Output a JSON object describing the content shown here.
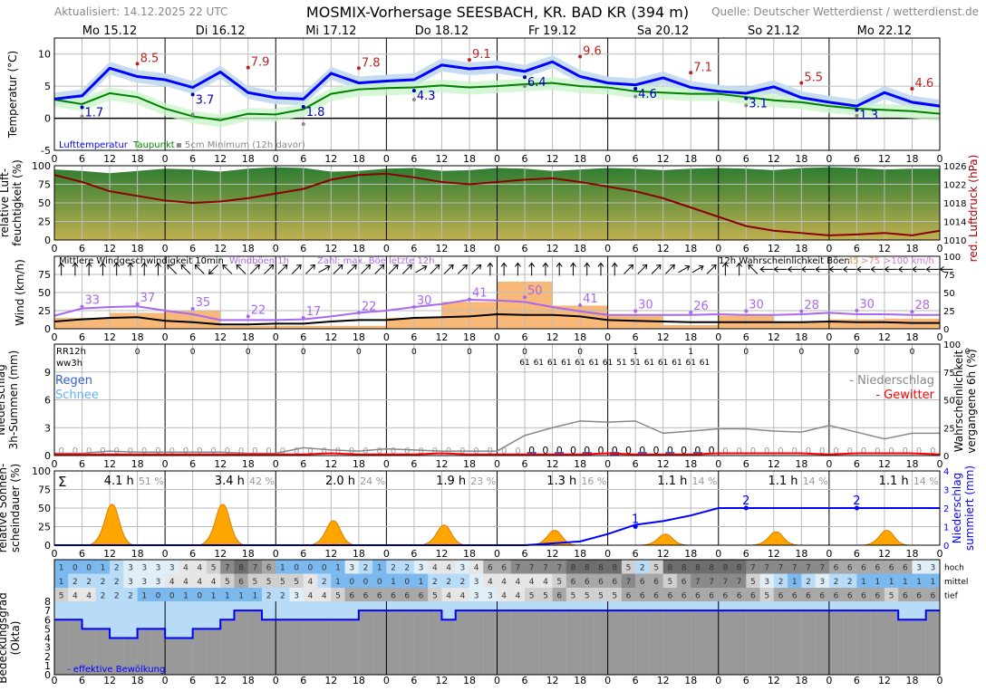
{
  "header": {
    "updated": "Aktualisiert: 14.12.2025 22 UTC",
    "title": "MOSMIX-Vorhersage SEESBACH, KR. BAD KR (394 m)",
    "source": "Quelle: Deutscher Wetterdienst / wetterdienst.de"
  },
  "days": [
    "Mo 15.12",
    "Di 16.12",
    "Mi 17.12",
    "Do 18.12",
    "Fr 19.12",
    "Sa 20.12",
    "So 21.12",
    "Mo 22.12"
  ],
  "hour_ticks": [
    "0",
    "6",
    "12",
    "18"
  ],
  "chart_data": [
    {
      "type": "line",
      "name": "temperature",
      "ylabel": "Temperatur (°C)",
      "ylim": [
        -5,
        12.5
      ],
      "yticks": [
        -5,
        0,
        5,
        10
      ],
      "x_hours_step": 6,
      "series": [
        {
          "name": "Lufttemperatur",
          "color": "#0000ff",
          "values": [
            3,
            3.5,
            7.8,
            6.5,
            6,
            4.8,
            7.2,
            4,
            3.2,
            3,
            7,
            5.5,
            5.8,
            6,
            8.3,
            7.7,
            8,
            7.3,
            8.8,
            6.5,
            5.5,
            5.2,
            6.3,
            4.8,
            4.2,
            3.9,
            4.9,
            3.2,
            2.5,
            1.9,
            4,
            2.5,
            1.9
          ]
        },
        {
          "name": "Taupunkt",
          "color": "#008000",
          "values": [
            2.9,
            2.2,
            3.9,
            3.3,
            1.5,
            0.3,
            -0.3,
            0.7,
            0.6,
            1.4,
            3.8,
            4.5,
            4.7,
            4.8,
            5.1,
            4.8,
            5,
            5.3,
            5.5,
            5,
            4.8,
            4.2,
            4,
            3.8,
            3.8,
            3.3,
            2.8,
            2.5,
            1.9,
            1.5,
            1.3,
            1.1,
            0.7
          ]
        }
      ],
      "max_labels": [
        8.5,
        7.9,
        7.8,
        9.1,
        9.6,
        7.1,
        5.5,
        4.6
      ],
      "min_labels": [
        1.7,
        3.7,
        1.8,
        4.3,
        6.4,
        4.6,
        3.1,
        1.3
      ],
      "ground_min": [
        0.3,
        0.6,
        -0.9,
        2.9,
        5,
        3.4,
        2,
        0.4
      ],
      "legend": [
        "Lufttemperatur",
        "Taupunkt",
        "▪ 5cm Minimum (12h davor)"
      ]
    },
    {
      "type": "area",
      "name": "humidity-pressure",
      "ylabel": "relative Luft-\nfeuchtigkeit (%)",
      "ylabel2": "red. Luftdruck (hPa)",
      "ylim": [
        0,
        100
      ],
      "yticks": [
        0,
        25,
        50,
        75,
        100
      ],
      "ylim2": [
        1010,
        1026
      ],
      "yticks2": [
        1010,
        1014,
        1018,
        1022,
        1026
      ],
      "humidity": [
        95,
        93,
        90,
        93,
        96,
        95,
        92,
        96,
        98,
        97,
        92,
        93,
        96,
        97,
        93,
        94,
        97,
        96,
        93,
        95,
        97,
        96,
        94,
        96,
        97,
        96,
        94,
        97,
        98,
        97,
        95,
        96,
        96
      ],
      "pressure": [
        1024,
        1022.5,
        1020.5,
        1019.5,
        1018.5,
        1018,
        1018.3,
        1019,
        1020,
        1021,
        1023,
        1024,
        1024.3,
        1023.5,
        1022.5,
        1022,
        1022.5,
        1023,
        1023.3,
        1022.5,
        1021.5,
        1020.5,
        1019,
        1017,
        1015,
        1013,
        1012,
        1011.5,
        1011,
        1011.2,
        1011.5,
        1011,
        1012
      ]
    },
    {
      "type": "line",
      "name": "wind",
      "ylabel": "Wind (km/h)",
      "ylim": [
        0,
        100
      ],
      "yticks": [
        0,
        25,
        50,
        75
      ],
      "yticks2": [
        0,
        25,
        50,
        75,
        100
      ],
      "legend": [
        "Mittlere Windgeschwindigkeit 10min",
        "Windböen 1h",
        "Zahl: max. Böe letzte 12h",
        "12h Wahrscheinlichkeit Böen",
        "45",
        ">75",
        ">100 km/h"
      ],
      "mean": [
        10,
        13,
        15,
        16,
        11,
        9,
        6,
        6,
        7,
        7,
        10,
        12,
        12,
        15,
        16,
        17,
        20,
        19,
        19,
        17,
        12,
        11,
        10,
        9,
        9,
        9,
        9,
        9,
        10,
        9,
        9,
        8,
        8
      ],
      "gusts": [
        18,
        28,
        30,
        31,
        25,
        20,
        12,
        12,
        12,
        13,
        17,
        22,
        25,
        30,
        34,
        40,
        39,
        37,
        30,
        24,
        19,
        19,
        19,
        19,
        20,
        19,
        19,
        20,
        22,
        20,
        20,
        19,
        19
      ],
      "gust_max": [
        33,
        37,
        35,
        22,
        17,
        22,
        30,
        41,
        50,
        41,
        30,
        26,
        30,
        28,
        30,
        28
      ],
      "gust_prob45": [
        15,
        22,
        25,
        4,
        4,
        4,
        15,
        37,
        65,
        32,
        18,
        5,
        18,
        10,
        13,
        14
      ],
      "wind_dir_deg": [
        0,
        0,
        0,
        0,
        0,
        0,
        0,
        0,
        315,
        315,
        315,
        225,
        315,
        315,
        45,
        45,
        45,
        45,
        45,
        60,
        45,
        45,
        45,
        45,
        45,
        45,
        60,
        45,
        45,
        45,
        45,
        0,
        0,
        0,
        0,
        0,
        0,
        0,
        0,
        0,
        0,
        45,
        45,
        45,
        45,
        60,
        60,
        45,
        0,
        0,
        315,
        270,
        270,
        270,
        270,
        270,
        270,
        270,
        270,
        270,
        270,
        270,
        270,
        270,
        270
      ]
    },
    {
      "type": "bar",
      "name": "precipitation",
      "ylabel": "Niederschlag\n3h-Summen (mm)",
      "ylabel2": "Wahrscheinlichkeit\nvergangene 6h (%)",
      "ylim": [
        0,
        12
      ],
      "yticks": [
        0,
        3,
        6,
        9
      ],
      "yticks2": [
        0,
        25,
        50,
        75,
        100
      ],
      "rr12h_label": "RR12h",
      "ww3h_label": "ww3h",
      "rr12h": [
        0,
        0,
        0,
        0,
        0,
        0,
        0,
        0,
        0,
        1,
        1,
        0,
        0,
        0,
        0,
        0
      ],
      "ww3h": [
        "61",
        "61",
        "61",
        "61",
        "61",
        "61",
        "61",
        "51",
        "51",
        "61",
        "61",
        "61",
        "61",
        "61"
      ],
      "legend": [
        "Regen",
        "Schnee",
        "- Niederschlag",
        "- Gewitter"
      ],
      "prob_precip": [
        2,
        2,
        4,
        3,
        3,
        3,
        3,
        2,
        2,
        7,
        5,
        4,
        6,
        5,
        4,
        4,
        4,
        18,
        25,
        31,
        30,
        31,
        20,
        22,
        24,
        24,
        22,
        21,
        27,
        21,
        15,
        20,
        20
      ],
      "prob_thunder": [
        1,
        1,
        1,
        1,
        1,
        1,
        1,
        1,
        1,
        1,
        2,
        1,
        1,
        1,
        2,
        1,
        1,
        1,
        1,
        1,
        2,
        1,
        1,
        1,
        2,
        2,
        2,
        2,
        1,
        2,
        2,
        2,
        1
      ]
    },
    {
      "type": "area",
      "name": "sunshine",
      "ylabel": "relative Sonnen-\nscheindauer (%)",
      "ylabel2": "Niederschlag\nsummiert (mm)",
      "ylim": [
        0,
        100
      ],
      "yticks": [
        0,
        25,
        50,
        75,
        100
      ],
      "ylim2": [
        0,
        4
      ],
      "yticks2": [
        0,
        1,
        2,
        3,
        4
      ],
      "sigma": "Σ",
      "daily_hours": [
        "4.1 h",
        "3.4 h",
        "2.0 h",
        "1.9 h",
        "1.3 h",
        "1.1 h",
        "1.1 h",
        "1.1 h"
      ],
      "daily_pct": [
        "51 %",
        "42 %",
        "24 %",
        "23 %",
        "16 %",
        "14 %",
        "14 %",
        "14 %"
      ],
      "peak_pct": [
        55,
        55,
        33,
        27,
        20,
        15,
        18,
        20
      ],
      "cum_precip": [
        0,
        0,
        0,
        0,
        0,
        0,
        0,
        0,
        0,
        0,
        0,
        0,
        0,
        0,
        0,
        0,
        0,
        0,
        0.1,
        0.2,
        0.6,
        1.1,
        1.3,
        1.6,
        2,
        2,
        2,
        2,
        2,
        2,
        2,
        2,
        2
      ],
      "cum_labels": [
        "1",
        "2",
        "2"
      ]
    },
    {
      "type": "heatmap",
      "name": "cloud-cover",
      "ylabel": "Bedeckungsgrad\n(Okta)",
      "ylim": [
        0,
        8
      ],
      "yticks": [
        0,
        1,
        2,
        3,
        4,
        5,
        6,
        7,
        8
      ],
      "rows": [
        "hoch",
        "mittel",
        "tief"
      ],
      "hoch": [
        1,
        0,
        0,
        1,
        2,
        3,
        3,
        3,
        3,
        4,
        4,
        5,
        7,
        8,
        7,
        6,
        1,
        0,
        0,
        0,
        1,
        3,
        2,
        1,
        2,
        2,
        3,
        4,
        4,
        3,
        4,
        6,
        6,
        7,
        7,
        7,
        7,
        8,
        8,
        8,
        8,
        5,
        2,
        5,
        8,
        8,
        8,
        8,
        8,
        8,
        7,
        7,
        7,
        7,
        7,
        7,
        6,
        6,
        6,
        6,
        6,
        6,
        3,
        3
      ],
      "mittel": [
        1,
        2,
        2,
        2,
        2,
        3,
        3,
        3,
        4,
        4,
        4,
        4,
        5,
        6,
        5,
        5,
        5,
        5,
        4,
        2,
        1,
        0,
        0,
        0,
        1,
        0,
        1,
        2,
        2,
        2,
        3,
        4,
        4,
        4,
        4,
        4,
        5,
        6,
        6,
        6,
        6,
        7,
        6,
        6,
        5,
        6,
        7,
        7,
        7,
        7,
        5,
        3,
        2,
        1,
        2,
        3,
        2,
        2,
        1,
        1,
        1,
        1,
        1,
        1
      ],
      "tief": [
        5,
        4,
        4,
        2,
        2,
        2,
        1,
        0,
        0,
        1,
        0,
        1,
        1,
        1,
        1,
        2,
        2,
        3,
        4,
        4,
        5,
        6,
        6,
        6,
        6,
        6,
        6,
        5,
        4,
        4,
        3,
        3,
        4,
        4,
        5,
        5,
        6,
        5,
        5,
        5,
        5,
        6,
        6,
        6,
        6,
        6,
        6,
        6,
        6,
        6,
        6,
        5,
        6,
        6,
        6,
        6,
        6,
        6,
        6,
        6,
        5,
        6,
        6,
        6
      ],
      "effective": [
        6,
        6,
        5,
        5,
        4,
        4,
        5,
        5,
        4,
        4,
        5,
        5,
        6,
        7,
        7,
        6,
        6,
        6,
        6,
        6,
        6,
        6,
        7,
        7,
        7,
        7,
        7,
        7,
        6,
        7,
        7,
        7,
        7,
        7,
        7,
        7,
        7,
        7,
        7,
        7,
        7,
        7,
        7,
        7,
        7,
        7,
        7,
        7,
        7,
        7,
        7,
        7,
        7,
        7,
        7,
        7,
        7,
        7,
        7,
        7,
        7,
        6,
        6,
        7
      ],
      "legend": "- effektive Bewölkung"
    }
  ]
}
